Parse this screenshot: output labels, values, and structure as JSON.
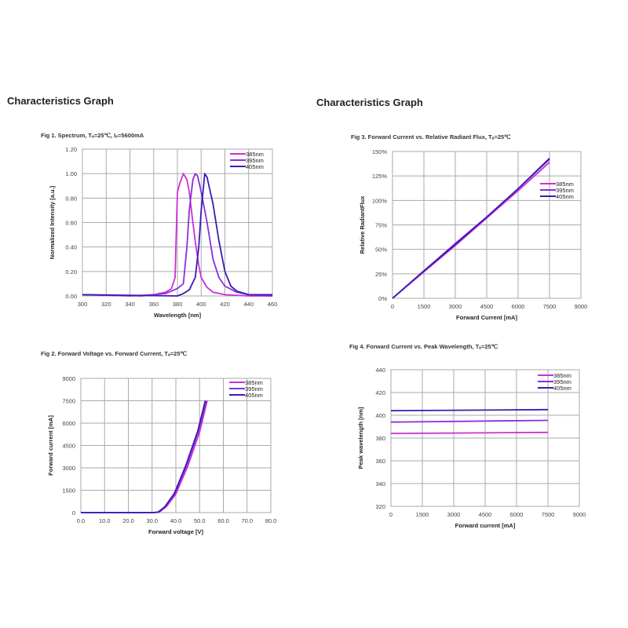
{
  "headings": [
    "Characteristics Graph",
    "Characteristics Graph"
  ],
  "colors": {
    "385nm": "#cc2fd6",
    "395nm": "#8a2ee0",
    "405nm": "#3a1cb4"
  },
  "chart_data": [
    {
      "id": "fig1",
      "type": "line",
      "title": "Fig 1. Spectrum, Tₐ=25℃, Iₑ=5600mA",
      "xlabel": "Wavelength [nm]",
      "ylabel": "Normalized Intensity [a.u.]",
      "xlim": [
        300,
        460
      ],
      "ylim": [
        0,
        1.2
      ],
      "xticks": [
        "300",
        "320",
        "340",
        "360",
        "380",
        "400",
        "420",
        "440",
        "460"
      ],
      "yticks": [
        "0.00",
        "0.20",
        "0.40",
        "0.60",
        "0.80",
        "1.00",
        "1.20"
      ],
      "grid": true,
      "legend": "top-right",
      "series": [
        {
          "name": "385nm",
          "x": [
            300,
            340,
            360,
            370,
            375,
            378,
            380,
            382,
            385,
            388,
            390,
            393,
            395,
            398,
            400,
            405,
            410,
            420,
            440,
            460
          ],
          "y": [
            0.01,
            0,
            0.01,
            0.03,
            0.06,
            0.15,
            0.85,
            0.92,
            1.0,
            0.95,
            0.85,
            0.6,
            0.45,
            0.25,
            0.15,
            0.07,
            0.03,
            0.01,
            0,
            0
          ]
        },
        {
          "name": "395nm",
          "x": [
            300,
            350,
            370,
            380,
            385,
            388,
            390,
            393,
            395,
            397,
            400,
            405,
            410,
            415,
            420,
            430,
            440,
            460
          ],
          "y": [
            0.01,
            0,
            0.02,
            0.06,
            0.1,
            0.4,
            0.7,
            0.95,
            1.0,
            0.98,
            0.85,
            0.6,
            0.3,
            0.15,
            0.08,
            0.03,
            0.01,
            0
          ]
        },
        {
          "name": "405nm",
          "x": [
            300,
            380,
            385,
            390,
            395,
            398,
            400,
            403,
            405,
            410,
            415,
            420,
            425,
            430,
            440,
            460
          ],
          "y": [
            0.01,
            0,
            0.02,
            0.05,
            0.15,
            0.4,
            0.7,
            1.0,
            0.97,
            0.75,
            0.45,
            0.2,
            0.08,
            0.04,
            0.01,
            0.01
          ]
        }
      ]
    },
    {
      "id": "fig2",
      "type": "line",
      "title": "Fig 2. Forward Voltage vs. Forward Current, Tₐ=25℃",
      "xlabel": "Forward voltage [V]",
      "ylabel": "Forward current [mA]",
      "xlim": [
        0,
        80
      ],
      "ylim": [
        0,
        9000
      ],
      "xticks": [
        "0.0",
        "10.0",
        "20.0",
        "30.0",
        "40.0",
        "50.0",
        "60.0",
        "70.0",
        "80.0"
      ],
      "yticks": [
        "0",
        "1500",
        "3000",
        "4500",
        "6000",
        "7500",
        "9000"
      ],
      "grid": true,
      "legend": "top-right",
      "series": [
        {
          "name": "385nm",
          "x": [
            0,
            31,
            33,
            36,
            40,
            45,
            50,
            53.2
          ],
          "y": [
            0,
            0,
            30,
            400,
            1250,
            3100,
            5400,
            7500
          ]
        },
        {
          "name": "395nm",
          "x": [
            0,
            30.8,
            32.8,
            35.7,
            39.7,
            44.6,
            49.6,
            52.8
          ],
          "y": [
            0,
            0,
            30,
            400,
            1300,
            3200,
            5500,
            7500
          ]
        },
        {
          "name": "405nm",
          "x": [
            0,
            30.5,
            32.5,
            35.4,
            39.4,
            44.3,
            49.3,
            52.4
          ],
          "y": [
            0,
            0,
            30,
            400,
            1300,
            3200,
            5500,
            7500
          ]
        }
      ]
    },
    {
      "id": "fig3",
      "type": "line",
      "title": "Fig 3. Forward Current vs. Relative Radiant Flux, Tₐ=25℃",
      "xlabel": "Forward Current [mA]",
      "ylabel": "Relative RadiantFlux",
      "xlim": [
        0,
        9000
      ],
      "ylim": [
        0,
        150
      ],
      "xticks": [
        "0",
        "1500",
        "3000",
        "4500",
        "6000",
        "7500",
        "9000"
      ],
      "yticks": [
        "0%",
        "25%",
        "50%",
        "75%",
        "100%",
        "125%",
        "150%"
      ],
      "grid": true,
      "legend": "right",
      "series": [
        {
          "name": "385nm",
          "x": [
            0,
            1500,
            3000,
            4500,
            6000,
            7500
          ],
          "y": [
            0,
            27,
            54,
            82,
            110,
            139
          ]
        },
        {
          "name": "395nm",
          "x": [
            0,
            1500,
            3000,
            4500,
            6000,
            7500
          ],
          "y": [
            0,
            28,
            56,
            83,
            112,
            142
          ]
        },
        {
          "name": "405nm",
          "x": [
            0,
            1500,
            3000,
            4500,
            6000,
            7500
          ],
          "y": [
            0,
            28,
            55,
            83,
            112,
            143
          ]
        }
      ]
    },
    {
      "id": "fig4",
      "type": "line",
      "title": "Fig 4. Forward Current vs. Peak Wavelength, Tₐ=25℃",
      "xlabel": "Forward current [mA]",
      "ylabel": "Peak wavelength [nm]",
      "xlim": [
        0,
        9000
      ],
      "ylim": [
        320,
        440
      ],
      "xticks": [
        "0",
        "1500",
        "3000",
        "4500",
        "6000",
        "7500",
        "9000"
      ],
      "yticks": [
        "320",
        "340",
        "360",
        "380",
        "400",
        "420",
        "440"
      ],
      "grid": true,
      "legend": "top-right",
      "series": [
        {
          "name": "385nm",
          "x": [
            0,
            7500
          ],
          "y": [
            384,
            385
          ]
        },
        {
          "name": "395nm",
          "x": [
            0,
            7500
          ],
          "y": [
            394,
            395.5
          ]
        },
        {
          "name": "405nm",
          "x": [
            0,
            7500
          ],
          "y": [
            404,
            405
          ]
        }
      ]
    }
  ]
}
